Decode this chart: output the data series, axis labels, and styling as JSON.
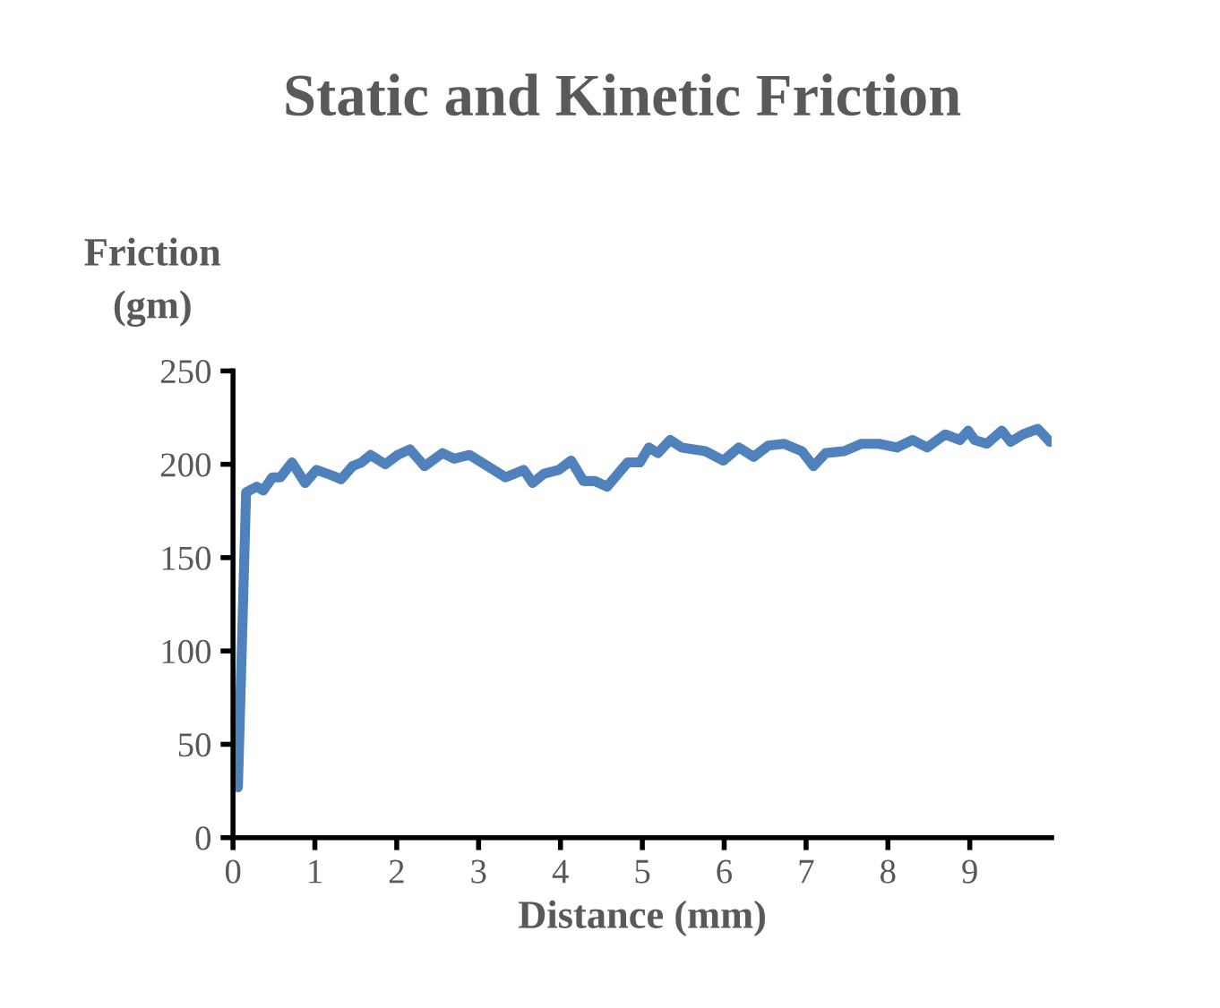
{
  "chart_data": {
    "type": "line",
    "title": "Static and Kinetic Friction",
    "xlabel": "Distance (mm)",
    "ylabel": "Friction\n(gm)",
    "xlim": [
      0,
      10
    ],
    "xticks": [
      0,
      1,
      2,
      3,
      4,
      5,
      6,
      7,
      8,
      9
    ],
    "ylim": [
      0,
      250
    ],
    "yticks": [
      0,
      50,
      100,
      150,
      200,
      250
    ],
    "grid": false,
    "legend": false,
    "marker": "none",
    "line_style": "solid",
    "series": [
      {
        "color": "#4f81bd",
        "x": [
          0.06,
          0.16,
          0.29,
          0.37,
          0.48,
          0.58,
          0.72,
          0.88,
          1.02,
          1.21,
          1.32,
          1.46,
          1.57,
          1.68,
          1.86,
          2.01,
          2.16,
          2.34,
          2.56,
          2.7,
          2.89,
          3.11,
          3.33,
          3.44,
          3.55,
          3.66,
          3.8,
          3.98,
          4.13,
          4.28,
          4.42,
          4.57,
          4.82,
          4.97,
          5.08,
          5.19,
          5.34,
          5.48,
          5.77,
          5.99,
          6.18,
          6.36,
          6.54,
          6.73,
          6.95,
          7.09,
          7.24,
          7.46,
          7.68,
          7.89,
          8.11,
          8.3,
          8.48,
          8.7,
          8.88,
          8.98,
          9.06,
          9.21,
          9.39,
          9.5,
          9.65,
          9.83,
          9.98
        ],
        "values": [
          27,
          185,
          188,
          186,
          193,
          193,
          201,
          190,
          197,
          194,
          192,
          199,
          201,
          205,
          200,
          205,
          208,
          199,
          206,
          203,
          205,
          199,
          193,
          195,
          197,
          190,
          195,
          197,
          202,
          191,
          191,
          188,
          201,
          201,
          209,
          206,
          213,
          209,
          207,
          202,
          209,
          204,
          210,
          211,
          207,
          199,
          206,
          207,
          211,
          211,
          209,
          213,
          209,
          216,
          213,
          218,
          213,
          211,
          218,
          212,
          216,
          219,
          212
        ]
      }
    ]
  }
}
